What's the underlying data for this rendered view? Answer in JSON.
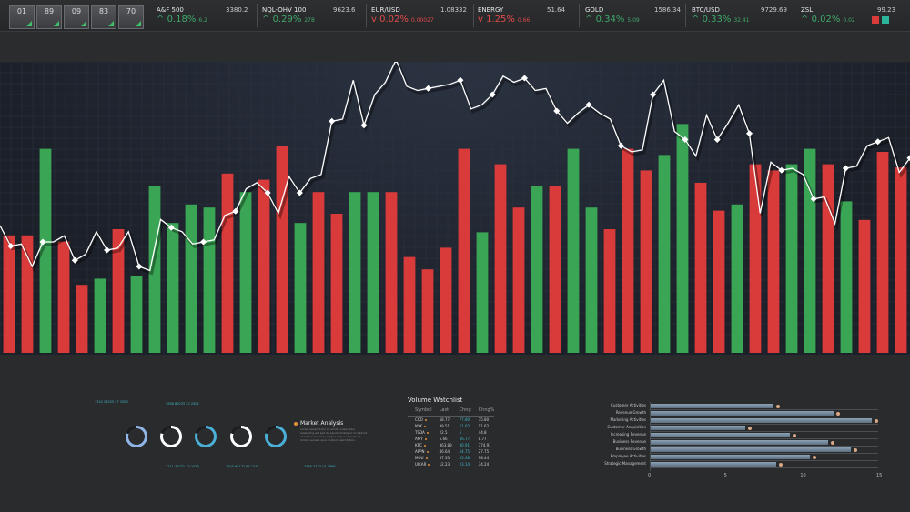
{
  "topbar": {
    "thumbs": [
      "01",
      "89",
      "09",
      "83",
      "70"
    ],
    "tickers": [
      {
        "name": "A&F 500",
        "price": "3380.2",
        "change": "0.18%",
        "sub": "6.2",
        "dir": "up"
      },
      {
        "name": "NQL-OHV 100",
        "price": "9623.6",
        "change": "0.29%",
        "sub": "278",
        "dir": "up"
      },
      {
        "name": "EUR/USD",
        "price": "1.08332",
        "change": "0.02%",
        "sub": "0.00027",
        "dir": "dn"
      },
      {
        "name": "ENERGY",
        "price": "51.64",
        "change": "1.25%",
        "sub": "0.66",
        "dir": "dn"
      },
      {
        "name": "GOLD",
        "price": "1586.34",
        "change": "0.34%",
        "sub": "5.09",
        "dir": "up"
      },
      {
        "name": "BTC/USD",
        "price": "9729.69",
        "change": "0.33%",
        "sub": "32.41",
        "dir": "up"
      },
      {
        "name": "ZSL",
        "price": "99.23",
        "change": "0.02%",
        "sub": "0.02",
        "dir": "up"
      }
    ]
  },
  "colors": {
    "up": "#3fa86a",
    "down": "#e04a4a",
    "bar_green": "#3aa655",
    "bar_red": "#d93a3a",
    "line": "#ffffff",
    "accent": "#3fb6c6",
    "orange": "#e28f3b"
  },
  "chart_data": {
    "type": "bar",
    "bars": [
      {
        "v": 38,
        "c": "r"
      },
      {
        "v": 38,
        "c": "r"
      },
      {
        "v": 66,
        "c": "g"
      },
      {
        "v": 36,
        "c": "r"
      },
      {
        "v": 22,
        "c": "r"
      },
      {
        "v": 24,
        "c": "g"
      },
      {
        "v": 40,
        "c": "r"
      },
      {
        "v": 25,
        "c": "g"
      },
      {
        "v": 54,
        "c": "g"
      },
      {
        "v": 42,
        "c": "g"
      },
      {
        "v": 48,
        "c": "g"
      },
      {
        "v": 47,
        "c": "g"
      },
      {
        "v": 58,
        "c": "r"
      },
      {
        "v": 52,
        "c": "g"
      },
      {
        "v": 56,
        "c": "r"
      },
      {
        "v": 67,
        "c": "r"
      },
      {
        "v": 42,
        "c": "g"
      },
      {
        "v": 52,
        "c": "r"
      },
      {
        "v": 45,
        "c": "r"
      },
      {
        "v": 52,
        "c": "g"
      },
      {
        "v": 52,
        "c": "g"
      },
      {
        "v": 52,
        "c": "r"
      },
      {
        "v": 31,
        "c": "r"
      },
      {
        "v": 27,
        "c": "r"
      },
      {
        "v": 34,
        "c": "r"
      },
      {
        "v": 66,
        "c": "r"
      },
      {
        "v": 39,
        "c": "g"
      },
      {
        "v": 61,
        "c": "r"
      },
      {
        "v": 47,
        "c": "r"
      },
      {
        "v": 54,
        "c": "g"
      },
      {
        "v": 54,
        "c": "r"
      },
      {
        "v": 66,
        "c": "g"
      },
      {
        "v": 47,
        "c": "g"
      },
      {
        "v": 40,
        "c": "r"
      },
      {
        "v": 66,
        "c": "r"
      },
      {
        "v": 59,
        "c": "r"
      },
      {
        "v": 64,
        "c": "g"
      },
      {
        "v": 74,
        "c": "g"
      },
      {
        "v": 55,
        "c": "r"
      },
      {
        "v": 46,
        "c": "r"
      },
      {
        "v": 48,
        "c": "g"
      },
      {
        "v": 61,
        "c": "r"
      },
      {
        "v": 59,
        "c": "r"
      },
      {
        "v": 61,
        "c": "g"
      },
      {
        "v": 66,
        "c": "g"
      },
      {
        "v": 61,
        "c": "r"
      },
      {
        "v": 49,
        "c": "g"
      },
      {
        "v": 43,
        "c": "r"
      },
      {
        "v": 65,
        "c": "r"
      },
      {
        "v": 60,
        "c": "r"
      }
    ],
    "line": [
      32,
      22,
      23,
      12,
      24,
      24,
      27,
      15,
      18,
      29,
      20,
      21,
      29,
      12,
      10,
      35,
      31,
      29,
      23,
      24,
      25,
      37,
      39,
      50,
      53,
      48,
      38,
      56,
      48,
      55,
      57,
      83,
      84,
      103,
      81,
      96,
      102,
      113,
      100,
      98,
      99,
      100,
      101,
      103,
      89,
      91,
      96,
      105,
      102,
      104,
      98,
      99,
      88,
      82,
      87,
      91,
      87,
      84,
      71,
      68,
      69,
      96,
      103,
      78,
      74,
      66,
      86,
      74,
      82,
      91,
      77,
      38,
      63,
      59,
      60,
      57,
      45,
      46,
      33,
      60,
      61,
      71,
      73,
      75,
      58,
      65
    ]
  },
  "rings": [
    {
      "color": "#8fb6e6",
      "track": "#1c1d1f"
    },
    {
      "color": "#ffffff",
      "track": "#1c1d1f"
    },
    {
      "color": "#4bb0d8",
      "track": "#1c1d1f"
    },
    {
      "color": "#ffffff",
      "track": "#1c1d1f"
    },
    {
      "color": "#4bb0d8",
      "track": "#1c1d1f"
    }
  ],
  "ring_labels": [
    "7310 23525 27 2303",
    "7856 86233 22 2302",
    "7211 45771 23 2473",
    "1843 68177 64 1747",
    "7430 3723 14 7869"
  ],
  "market_analysis": {
    "title": "Market Analysis",
    "text": "Lorem ipsum dolor sit amet consectetur adipiscing elit sed do eiusmod tempor incididunt ut labore et dolore magna aliqua ut enim ad minim veniam quis nostrud exercitation."
  },
  "watchlist": {
    "title": "Volume Watchlist",
    "headers": [
      "Symbol",
      "Last",
      "Chng",
      "Chng%"
    ],
    "rows": [
      {
        "sym": "CCO",
        "last": "58.77",
        "chg": "77.80",
        "chgp": "75.80"
      },
      {
        "sym": "NYK",
        "last": "39.51",
        "chg": "51.62",
        "chgp": "11.62"
      },
      {
        "sym": "TSDA",
        "last": "22.5",
        "chg": "5",
        "chgp": "44.8"
      },
      {
        "sym": "AMY",
        "last": "5.66",
        "chg": "66.77",
        "chgp": "8.77"
      },
      {
        "sym": "KRC",
        "last": "363.89",
        "chg": "80.91",
        "chgp": "774.91"
      },
      {
        "sym": "APPN",
        "last": "46.64",
        "chg": "64.75",
        "chgp": "27.75"
      },
      {
        "sym": "MOU",
        "last": "87.33",
        "chg": "55.48",
        "chgp": "98.44"
      },
      {
        "sym": "UICAR",
        "last": "12.23",
        "chg": "23.14",
        "chgp": "34.24"
      }
    ]
  },
  "hbar_data": {
    "categories": [
      "Customer Activities",
      "Revenue Growth",
      "Marketing Activities",
      "Customer Acquisition",
      "Increasing Revenue",
      "Business Revenue",
      "Business Growth",
      "Employee Activities",
      "Strategic Management"
    ],
    "values": [
      8.1,
      12.1,
      14.6,
      6.3,
      9.2,
      11.7,
      13.2,
      10.5,
      8.3
    ],
    "xticks": [
      "0",
      "5",
      "10",
      "15"
    ],
    "xmax": 15
  }
}
